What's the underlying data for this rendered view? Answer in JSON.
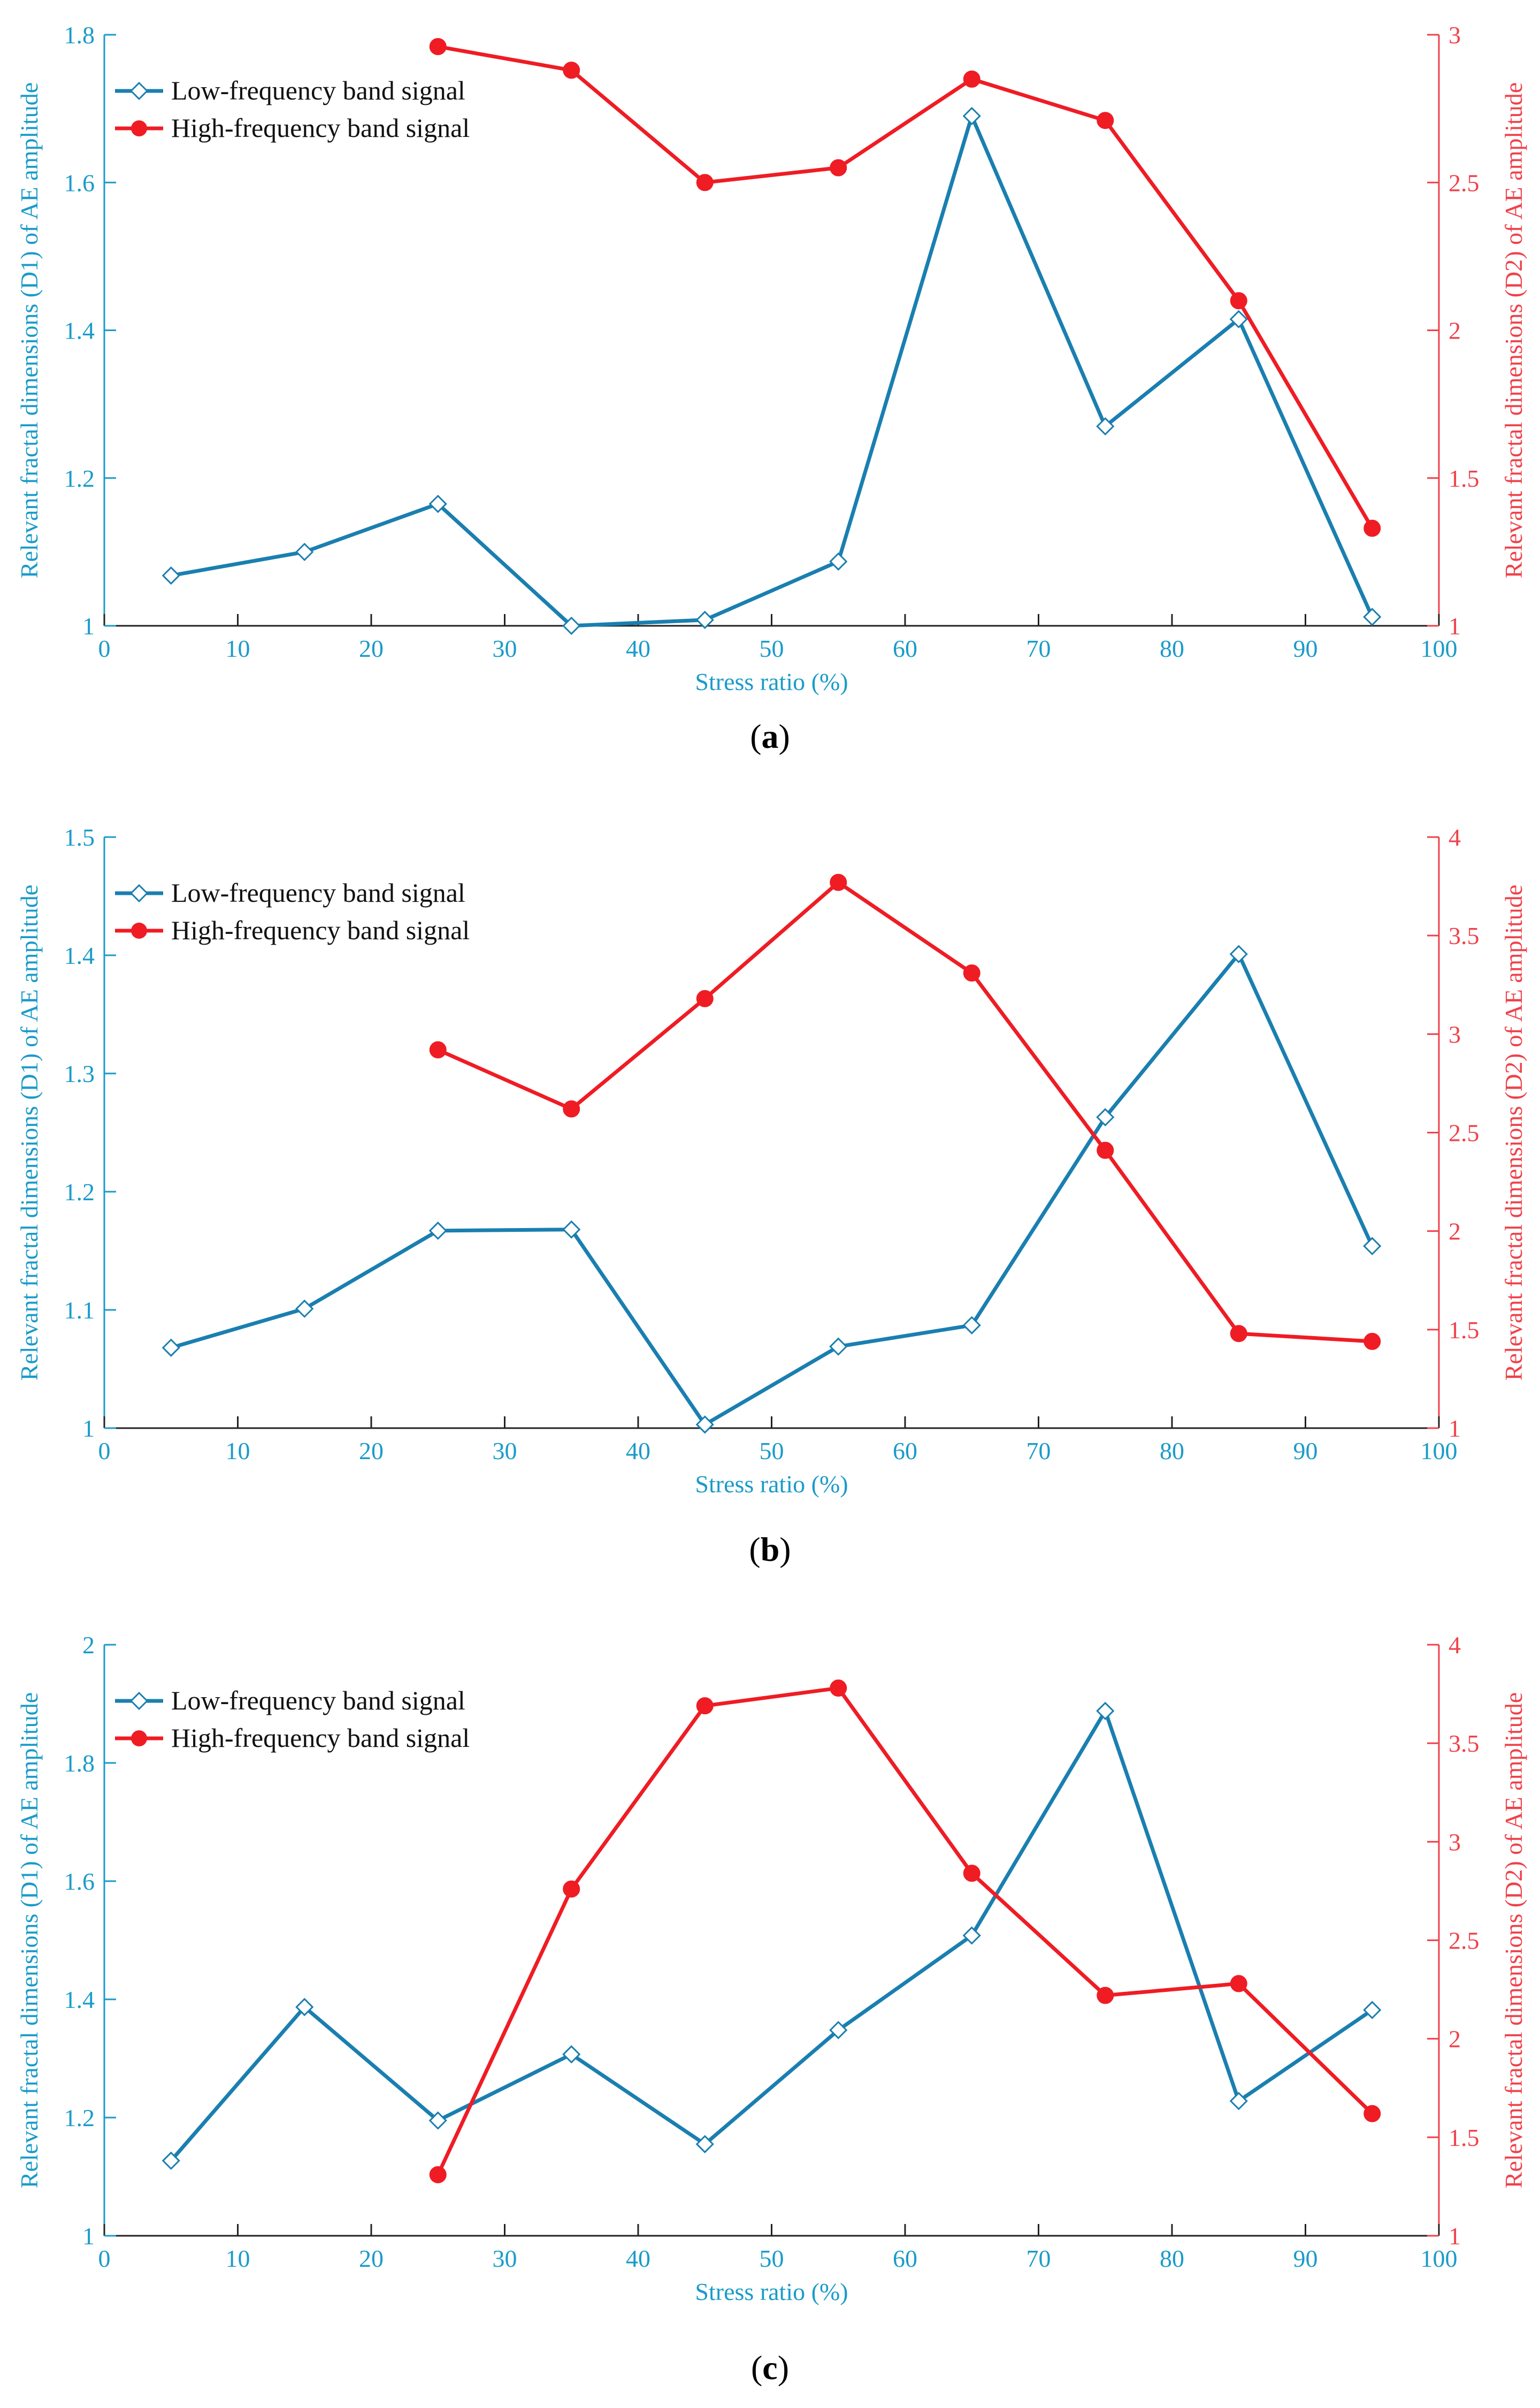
{
  "colors": {
    "left_axis": "#1a9bc9",
    "right_axis": "#f0414a",
    "low_series": "#1a7fb0",
    "high_series": "#ef1c24"
  },
  "chart_data": [
    {
      "type": "line",
      "panel": "a",
      "caption_prefix": "(",
      "caption_letter": "a",
      "caption_suffix": ")",
      "xlabel": "Stress ratio (%)",
      "ylabel_left": "Relevant fractal dimensions (D1) of AE amplitude",
      "ylabel_right": "Relevant fractal dimensions (D2) of AE amplitude",
      "xlim": [
        0,
        100
      ],
      "ylim_left": [
        1,
        1.8
      ],
      "ylim_right": [
        1,
        3
      ],
      "xticks": [
        "0",
        "10",
        "20",
        "30",
        "40",
        "50",
        "60",
        "70",
        "80",
        "90",
        "100"
      ],
      "yticks_left": [
        "1",
        "1.2",
        "1.4",
        "1.6",
        "1.8"
      ],
      "yticks_right": [
        "1",
        "1.5",
        "2",
        "2.5",
        "3"
      ],
      "legend_position": "top-left",
      "series": [
        {
          "name": "Low-frequency band signal",
          "axis": "left",
          "marker": "diamond",
          "x": [
            5,
            15,
            25,
            35,
            45,
            55,
            65,
            75,
            85,
            95
          ],
          "values": [
            1.068,
            1.1,
            1.165,
            1.0,
            1.008,
            1.087,
            1.69,
            1.27,
            1.415,
            1.012
          ]
        },
        {
          "name": "High-frequency band signal",
          "axis": "right",
          "marker": "circle",
          "x": [
            25,
            35,
            45,
            55,
            65,
            75,
            85,
            95
          ],
          "values": [
            2.96,
            2.88,
            2.5,
            2.55,
            2.85,
            2.71,
            2.1,
            1.33
          ]
        }
      ]
    },
    {
      "type": "line",
      "panel": "b",
      "caption_prefix": "(",
      "caption_letter": "b",
      "caption_suffix": ")",
      "xlabel": "Stress ratio (%)",
      "ylabel_left": "Relevant fractal dimensions (D1) of AE amplitude",
      "ylabel_right": "Relevant fractal dimensions (D2) of AE amplitude",
      "xlim": [
        0,
        100
      ],
      "ylim_left": [
        1,
        1.5
      ],
      "ylim_right": [
        1,
        4
      ],
      "xticks": [
        "0",
        "10",
        "20",
        "30",
        "40",
        "50",
        "60",
        "70",
        "80",
        "90",
        "100"
      ],
      "yticks_left": [
        "1",
        "1.1",
        "1.2",
        "1.3",
        "1.4",
        "1.5"
      ],
      "yticks_right": [
        "1",
        "1.5",
        "2",
        "2.5",
        "3",
        "3.5",
        "4"
      ],
      "legend_position": "top-left",
      "series": [
        {
          "name": "Low-frequency band signal",
          "axis": "left",
          "marker": "diamond",
          "x": [
            5,
            15,
            25,
            35,
            45,
            55,
            65,
            75,
            85,
            95
          ],
          "values": [
            1.068,
            1.101,
            1.167,
            1.168,
            1.003,
            1.069,
            1.087,
            1.263,
            1.401,
            1.154
          ]
        },
        {
          "name": "High-frequency band signal",
          "axis": "right",
          "marker": "circle",
          "x": [
            25,
            35,
            45,
            55,
            65,
            75,
            85,
            95
          ],
          "values": [
            2.92,
            2.62,
            3.18,
            3.77,
            3.31,
            2.41,
            1.48,
            1.44
          ]
        }
      ]
    },
    {
      "type": "line",
      "panel": "c",
      "caption_prefix": "(",
      "caption_letter": "c",
      "caption_suffix": ")",
      "xlabel": "Stress ratio (%)",
      "ylabel_left": "Relevant fractal dimensions (D1) of AE amplitude",
      "ylabel_right": "Relevant fractal dimensions (D2) of AE amplitude",
      "xlim": [
        0,
        100
      ],
      "ylim_left": [
        1,
        2
      ],
      "ylim_right": [
        1,
        4
      ],
      "xticks": [
        "0",
        "10",
        "20",
        "30",
        "40",
        "50",
        "60",
        "70",
        "80",
        "90",
        "100"
      ],
      "yticks_left": [
        "1",
        "1.2",
        "1.4",
        "1.6",
        "1.8",
        "2"
      ],
      "yticks_right": [
        "1",
        "1.5",
        "2",
        "2.5",
        "3",
        "3.5",
        "4"
      ],
      "legend_position": "top-left",
      "series": [
        {
          "name": "Low-frequency band signal",
          "axis": "left",
          "marker": "diamond",
          "x": [
            5,
            15,
            25,
            35,
            45,
            55,
            65,
            75,
            85,
            95
          ],
          "values": [
            1.127,
            1.387,
            1.195,
            1.307,
            1.155,
            1.348,
            1.508,
            1.888,
            1.228,
            1.382
          ]
        },
        {
          "name": "High-frequency band signal",
          "axis": "right",
          "marker": "circle",
          "x": [
            25,
            35,
            45,
            55,
            65,
            75,
            85,
            95
          ],
          "values": [
            1.31,
            2.76,
            3.69,
            3.78,
            2.84,
            2.22,
            2.28,
            1.62
          ]
        }
      ]
    }
  ]
}
